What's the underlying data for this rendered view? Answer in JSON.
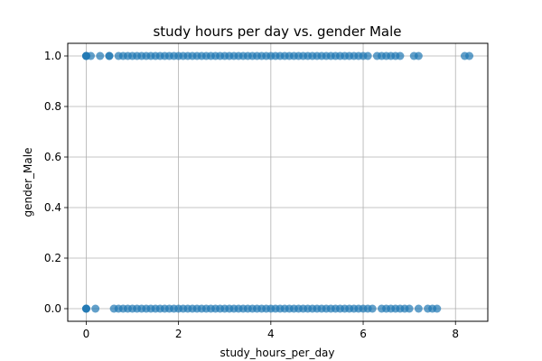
{
  "chart_data": {
    "type": "scatter",
    "title": "study hours per day vs. gender Male",
    "xlabel": "study_hours_per_day",
    "ylabel": "gender_Male",
    "xlim": [
      -0.4,
      8.7
    ],
    "ylim": [
      -0.05,
      1.05
    ],
    "x_ticks": [
      0,
      2,
      4,
      6,
      8
    ],
    "x_tick_labels": [
      "0",
      "2",
      "4",
      "6",
      "8"
    ],
    "y_ticks": [
      0.0,
      0.2,
      0.4,
      0.6,
      0.8,
      1.0
    ],
    "y_tick_labels": [
      "0.0",
      "0.2",
      "0.4",
      "0.6",
      "0.8",
      "1.0"
    ],
    "grid": true,
    "marker_color": "#1f77b4",
    "marker_alpha": 0.7,
    "series": [
      {
        "y": 1,
        "x": [
          0,
          0,
          0,
          0.1,
          0.3,
          0.5,
          0.5,
          0.7,
          0.8,
          0.9,
          1.0,
          1.1,
          1.2,
          1.3,
          1.4,
          1.5,
          1.6,
          1.7,
          1.8,
          1.9,
          2.0,
          2.1,
          2.2,
          2.3,
          2.4,
          2.5,
          2.6,
          2.7,
          2.8,
          2.9,
          3.0,
          3.1,
          3.2,
          3.3,
          3.4,
          3.5,
          3.6,
          3.7,
          3.8,
          3.9,
          4.0,
          4.1,
          4.2,
          4.3,
          4.4,
          4.5,
          4.6,
          4.7,
          4.8,
          4.9,
          5.0,
          5.1,
          5.2,
          5.3,
          5.4,
          5.5,
          5.6,
          5.7,
          5.8,
          5.9,
          6.0,
          6.1,
          6.3,
          6.4,
          6.5,
          6.6,
          6.7,
          6.8,
          7.1,
          7.2,
          8.2,
          8.3
        ]
      },
      {
        "y": 0,
        "x": [
          0,
          0,
          0,
          0.2,
          0.6,
          0.7,
          0.8,
          0.9,
          1.0,
          1.1,
          1.2,
          1.3,
          1.4,
          1.5,
          1.6,
          1.7,
          1.8,
          1.9,
          2.0,
          2.1,
          2.2,
          2.3,
          2.4,
          2.5,
          2.6,
          2.7,
          2.8,
          2.9,
          3.0,
          3.1,
          3.2,
          3.3,
          3.4,
          3.5,
          3.6,
          3.7,
          3.8,
          3.9,
          4.0,
          4.1,
          4.2,
          4.3,
          4.4,
          4.5,
          4.6,
          4.7,
          4.8,
          4.9,
          5.0,
          5.1,
          5.2,
          5.3,
          5.4,
          5.5,
          5.6,
          5.7,
          5.8,
          5.9,
          6.0,
          6.1,
          6.2,
          6.4,
          6.5,
          6.6,
          6.7,
          6.8,
          6.9,
          7.0,
          7.2,
          7.4,
          7.5,
          7.6
        ]
      }
    ]
  }
}
